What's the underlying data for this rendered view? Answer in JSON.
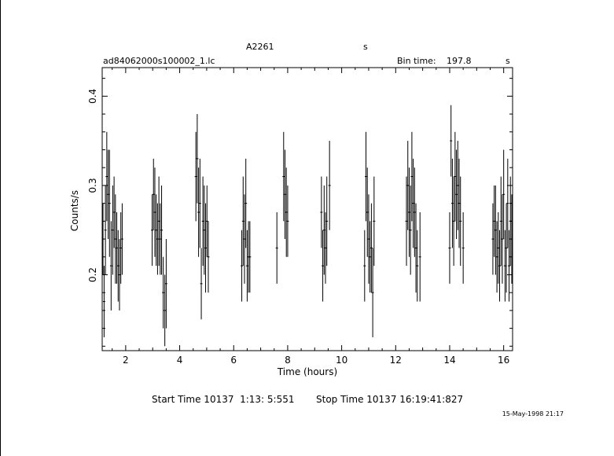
{
  "colors": {
    "background": "#ffffff",
    "foreground": "#000000"
  },
  "header": {
    "object_name": "A2261",
    "object_suffix": "s",
    "file_name": "ad84062000s100002_1.lc",
    "bin_time_label": "Bin time:",
    "bin_time_value": "197.8",
    "bin_time_unit": "s"
  },
  "footer": {
    "start_time": "Start Time 10137  1:13: 5:551",
    "stop_time": "Stop Time 10137 16:19:41:827",
    "date_stamp": "15-May-1998 21:17"
  },
  "chart_data": {
    "type": "scatter",
    "title": "A2261",
    "xlabel": "Time (hours)",
    "ylabel": "Counts/s",
    "xlim": [
      1.13,
      16.33
    ],
    "ylim": [
      0.115,
      0.432
    ],
    "x_ticks": [
      2,
      4,
      6,
      8,
      10,
      12,
      14,
      16
    ],
    "y_ticks": [
      0.2,
      0.3,
      0.4
    ],
    "x_tick_labels": [
      "2",
      "4",
      "6",
      "8",
      "10",
      "12",
      "14",
      "16"
    ],
    "y_tick_labels": [
      "0.2",
      "0.3",
      "0.4"
    ],
    "grid": false,
    "legend": "none",
    "series": [
      {
        "error_bars": "y",
        "x": [
          1.16,
          1.2,
          1.25,
          1.3,
          1.35,
          1.4,
          1.46,
          1.52,
          1.57,
          1.62,
          1.67,
          1.72,
          1.77,
          1.82,
          1.87,
          2.98,
          3.03,
          3.08,
          3.13,
          3.18,
          3.23,
          3.28,
          3.33,
          3.39,
          3.45,
          3.5,
          4.6,
          4.65,
          4.7,
          4.75,
          4.8,
          4.86,
          4.91,
          4.96,
          5.01,
          5.06,
          6.3,
          6.35,
          6.4,
          6.45,
          6.5,
          6.55,
          6.6,
          7.6,
          7.85,
          7.9,
          7.95,
          8.0,
          9.25,
          9.3,
          9.35,
          9.4,
          9.45,
          9.55,
          10.85,
          10.9,
          10.95,
          11.0,
          11.05,
          11.1,
          11.15,
          11.2,
          12.4,
          12.45,
          12.5,
          12.55,
          12.6,
          12.65,
          12.7,
          12.75,
          12.8,
          12.9,
          14.0,
          14.05,
          14.1,
          14.15,
          14.2,
          14.25,
          14.3,
          14.35,
          14.4,
          14.5,
          15.6,
          15.65,
          15.7,
          15.75,
          15.8,
          15.85,
          15.9,
          15.95,
          16.0,
          16.05,
          16.1,
          16.15,
          16.2,
          16.25,
          16.3
        ],
        "y": [
          0.24,
          0.17,
          0.25,
          0.31,
          0.29,
          0.28,
          0.21,
          0.25,
          0.27,
          0.24,
          0.23,
          0.21,
          0.2,
          0.23,
          0.24,
          0.25,
          0.29,
          0.27,
          0.25,
          0.24,
          0.26,
          0.24,
          0.25,
          0.18,
          0.16,
          0.19,
          0.31,
          0.33,
          0.27,
          0.28,
          0.19,
          0.26,
          0.25,
          0.23,
          0.26,
          0.22,
          0.21,
          0.26,
          0.24,
          0.28,
          0.21,
          0.22,
          0.22,
          0.23,
          0.31,
          0.29,
          0.27,
          0.26,
          0.27,
          0.21,
          0.25,
          0.23,
          0.26,
          0.3,
          0.21,
          0.31,
          0.27,
          0.24,
          0.22,
          0.23,
          0.18,
          0.26,
          0.26,
          0.3,
          0.27,
          0.25,
          0.31,
          0.28,
          0.27,
          0.23,
          0.21,
          0.22,
          0.23,
          0.35,
          0.28,
          0.26,
          0.31,
          0.29,
          0.3,
          0.28,
          0.26,
          0.23,
          0.24,
          0.26,
          0.25,
          0.22,
          0.23,
          0.21,
          0.26,
          0.24,
          0.29,
          0.21,
          0.23,
          0.28,
          0.21,
          0.26,
          0.24
        ],
        "yerr": [
          0.04,
          0.04,
          0.05,
          0.05,
          0.05,
          0.06,
          0.05,
          0.05,
          0.04,
          0.05,
          0.04,
          0.04,
          0.04,
          0.04,
          0.04,
          0.04,
          0.04,
          0.05,
          0.04,
          0.04,
          0.05,
          0.04,
          0.05,
          0.04,
          0.04,
          0.05,
          0.05,
          0.05,
          0.05,
          0.05,
          0.04,
          0.05,
          0.05,
          0.05,
          0.04,
          0.04,
          0.04,
          0.05,
          0.05,
          0.05,
          0.04,
          0.04,
          0.04,
          0.04,
          0.05,
          0.05,
          0.05,
          0.04,
          0.04,
          0.04,
          0.05,
          0.04,
          0.05,
          0.05,
          0.04,
          0.05,
          0.05,
          0.05,
          0.04,
          0.05,
          0.05,
          0.05,
          0.05,
          0.05,
          0.05,
          0.05,
          0.05,
          0.05,
          0.05,
          0.05,
          0.04,
          0.05,
          0.04,
          0.04,
          0.05,
          0.05,
          0.05,
          0.05,
          0.05,
          0.05,
          0.05,
          0.04,
          0.04,
          0.04,
          0.05,
          0.04,
          0.04,
          0.04,
          0.05,
          0.05,
          0.05,
          0.04,
          0.05,
          0.05,
          0.04,
          0.05,
          0.05
        ]
      }
    ]
  }
}
